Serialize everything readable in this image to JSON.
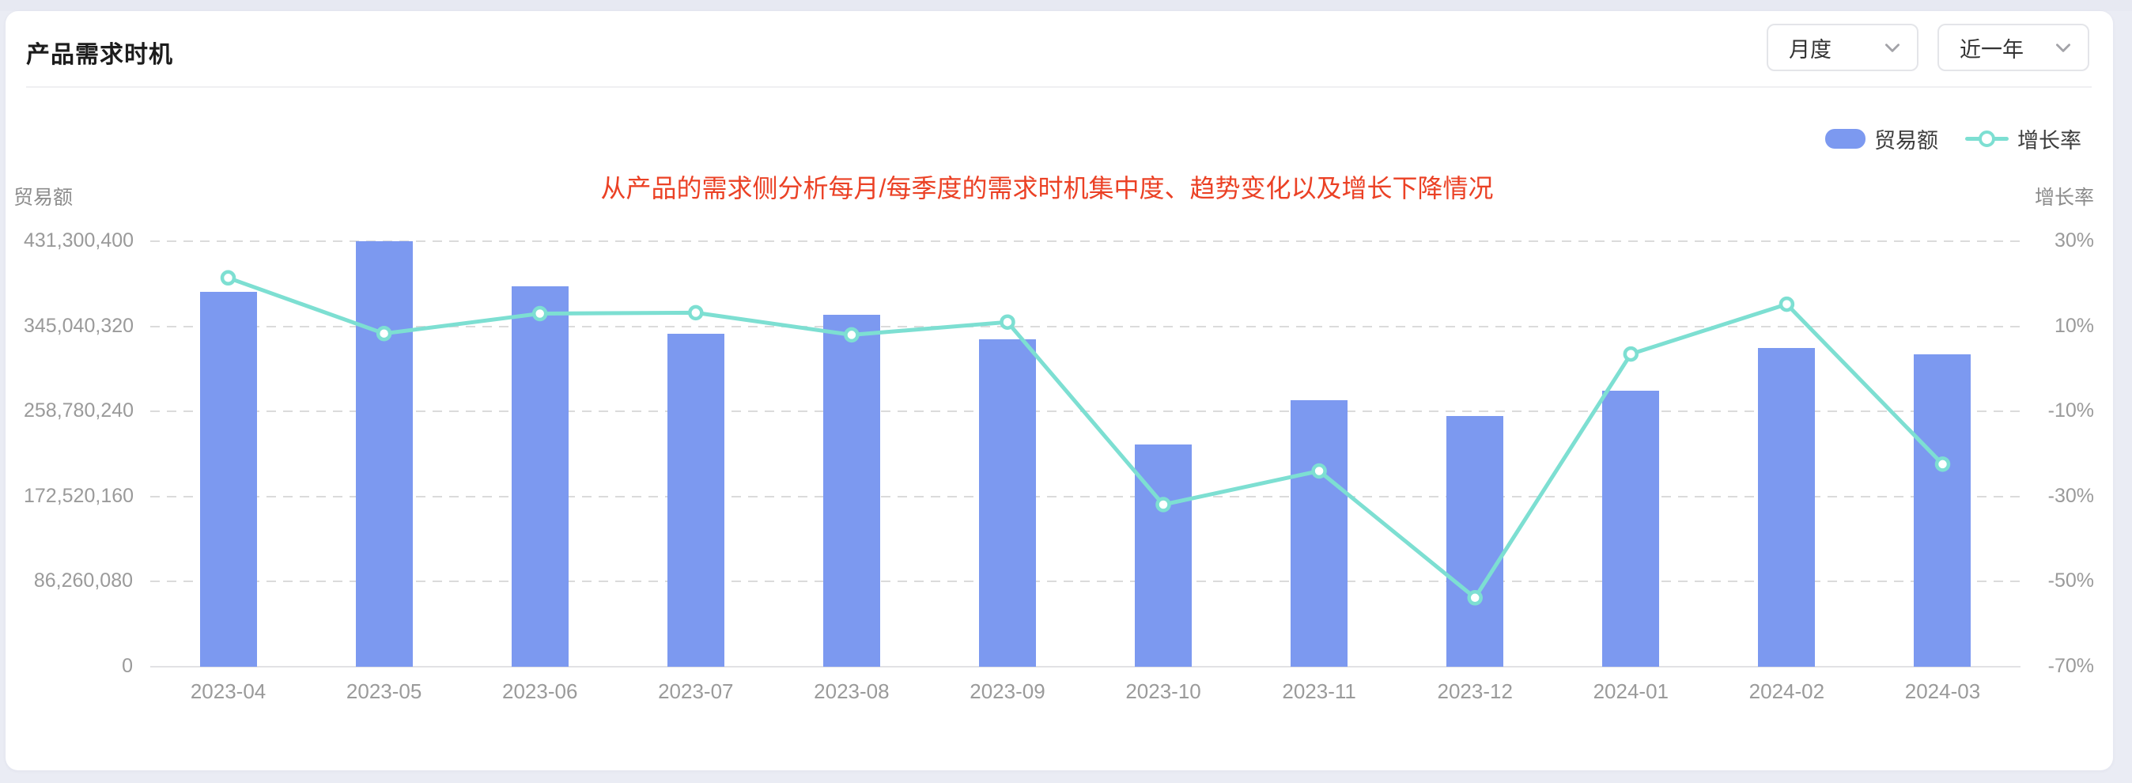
{
  "page": {
    "title": "产品需求时机"
  },
  "filters": {
    "period": {
      "value": "月度"
    },
    "range": {
      "value": "近一年"
    }
  },
  "legend": {
    "bar_label": "贸易额",
    "line_label": "增长率"
  },
  "annotation": "从产品的需求侧分析每月/每季度的需求时机集中度、趋势变化以及增长下降情况",
  "colors": {
    "bar": "#7C99F0",
    "line": "#7DDFD2",
    "annotation": "#EB4125",
    "grid": "#DBDBDB",
    "axis_text": "#9A9A9A",
    "page_bg": "#EAECF4",
    "card_bg": "#FFFFFF"
  },
  "chart_data": {
    "type": "bar",
    "subtype": "bar+line dual axis",
    "categories": [
      "2023-04",
      "2023-05",
      "2023-06",
      "2023-07",
      "2023-08",
      "2023-09",
      "2023-10",
      "2023-11",
      "2023-12",
      "2024-01",
      "2024-02",
      "2024-03"
    ],
    "series": [
      {
        "name": "贸易额",
        "type": "bar",
        "axis": "left",
        "values": [
          380200000,
          431300400,
          386000000,
          337600000,
          357000000,
          332300000,
          225600000,
          270200000,
          254300000,
          279500000,
          323000000,
          316300000
        ]
      },
      {
        "name": "增长率",
        "type": "line",
        "axis": "right",
        "unit": "%",
        "values": [
          21.4,
          8.3,
          13.0,
          13.2,
          8.0,
          11.0,
          -31.9,
          -24.0,
          -53.8,
          3.5,
          15.2,
          -22.4
        ]
      }
    ],
    "left_axis": {
      "title": "贸易额",
      "min": 0,
      "max": 431300400,
      "ticks_top_to_bottom": [
        "431,300,400",
        "345,040,320",
        "258,780,240",
        "172,520,160",
        "86,260,080",
        "0"
      ]
    },
    "right_axis": {
      "title": "增长率",
      "min": -70,
      "max": 30,
      "ticks_top_to_bottom": [
        "30%",
        "10%",
        "-10%",
        "-30%",
        "-50%",
        "-70%"
      ]
    },
    "grid": "horizontal dashed",
    "legend_position": "top-right",
    "title": "产品需求时机"
  }
}
